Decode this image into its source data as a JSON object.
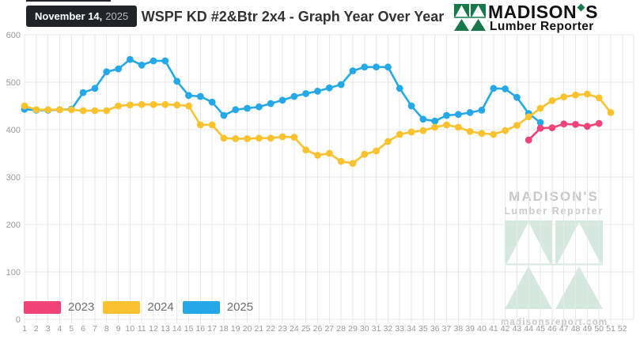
{
  "header": {
    "date_badge": {
      "date": "November 14,",
      "year": "2025"
    },
    "title": "WSPF KD #2&Btr 2x4 - Graph Year Over Year",
    "logo": {
      "brand_prefix": "MADISON",
      "brand_suffix": "S",
      "subtitle": "Lumber Reporter"
    }
  },
  "watermark": {
    "brand": "MADISON'S",
    "subtitle": "Lumber Reporter",
    "url": "madisonsreport.com"
  },
  "colors": {
    "series_2023": "#f04378",
    "series_2024": "#f9c22e",
    "series_2025": "#25a8e8",
    "logo_green": "#17794a",
    "watermark_green": "#d5e8de",
    "grid": "#e8e8e8",
    "axis_text": "#999999"
  },
  "chart_data": {
    "type": "line",
    "title": "WSPF KD #2&Btr 2x4 - Graph Year Over Year",
    "xlabel": "",
    "ylabel": "",
    "x_min": 1,
    "x_max": 52,
    "x_tick_step": 1,
    "ylim": [
      0,
      600
    ],
    "y_tick_step": 100,
    "grid": true,
    "legend_position": "bottom-left-inside",
    "series": [
      {
        "name": "2023",
        "color": "#f04378",
        "start_week": 44,
        "values": [
          378,
          403,
          404,
          412,
          411,
          407,
          413
        ]
      },
      {
        "name": "2024",
        "color": "#f9c22e",
        "start_week": 1,
        "values": [
          450,
          442,
          442,
          442,
          442,
          440,
          440,
          440,
          450,
          452,
          453,
          453,
          453,
          452,
          450,
          410,
          410,
          382,
          381,
          381,
          382,
          382,
          385,
          384,
          357,
          346,
          350,
          333,
          329,
          348,
          355,
          375,
          390,
          395,
          398,
          405,
          410,
          405,
          396,
          392,
          390,
          398,
          409,
          427,
          445,
          461,
          469,
          473,
          475,
          467,
          436
        ]
      },
      {
        "name": "2025",
        "color": "#25a8e8",
        "start_week": 1,
        "values": [
          443,
          441,
          441,
          442,
          443,
          478,
          487,
          522,
          528,
          548,
          536,
          545,
          545,
          502,
          472,
          470,
          458,
          430,
          442,
          445,
          448,
          455,
          462,
          470,
          476,
          481,
          488,
          495,
          524,
          532,
          532,
          532,
          487,
          450,
          422,
          418,
          430,
          432,
          436,
          441,
          487,
          486,
          468,
          434,
          415
        ]
      }
    ]
  }
}
